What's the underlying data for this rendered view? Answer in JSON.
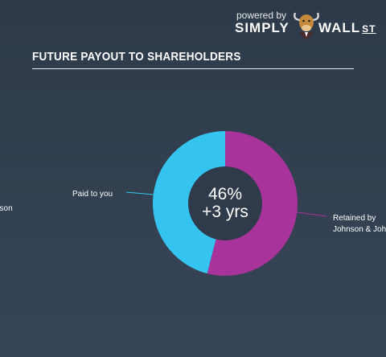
{
  "brand": {
    "powered_by": "powered by",
    "name_left": "SIMPLY",
    "name_right": "WALL",
    "name_suffix": "ST"
  },
  "title": "FUTURE PAYOUT TO SHAREHOLDERS",
  "left_edge_label": "nson",
  "colors": {
    "paid": "#35c4f0",
    "retained": "#a8339a",
    "background": "#2f3b4a"
  },
  "chart_data": {
    "type": "pie",
    "subtype": "donut",
    "slices": [
      {
        "label": "Paid to you",
        "value": 46,
        "color": "#35c4f0"
      },
      {
        "label": "Retained by Johnson & Johnson",
        "value": 54,
        "color": "#a8339a"
      }
    ],
    "center_text": {
      "percent": "46%",
      "horizon": "+3 yrs"
    },
    "labels": {
      "paid": "Paid to you",
      "retained_line1": "Retained by",
      "retained_line2": "Johnson & Johnson"
    }
  }
}
